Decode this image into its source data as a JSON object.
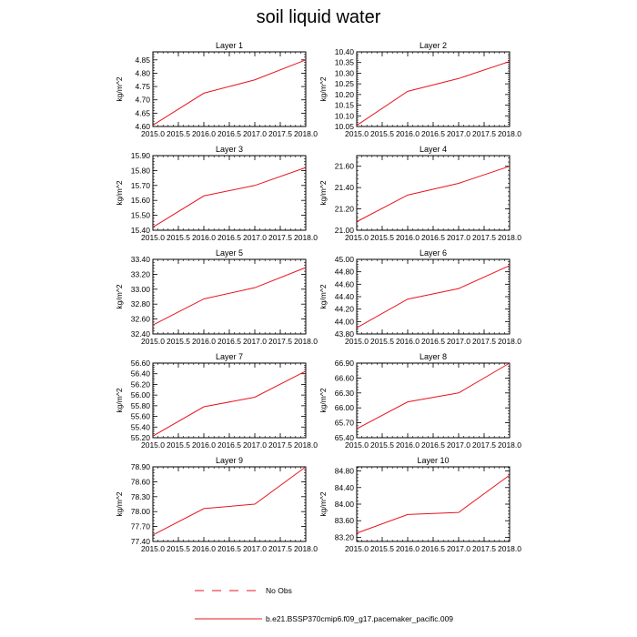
{
  "figure": {
    "title": "soil liquid water",
    "line_color": "#e8141e"
  },
  "legend": {
    "obs_label": "No Obs",
    "model_label": "b.e21.BSSP370cmip6.f09_g17.pacemaker_pacific.009"
  },
  "chart_data": [
    {
      "type": "line",
      "title": "Layer 1",
      "ylabel": "kg/m^2",
      "x": [
        2015,
        2016,
        2017,
        2018
      ],
      "xlim": [
        2015,
        2018
      ],
      "xticks": [
        "2015.0",
        "2015.5",
        "2016.0",
        "2016.5",
        "2017.0",
        "2017.5",
        "2018.0"
      ],
      "ylim": [
        4.6,
        4.88
      ],
      "yticks": [
        "4.60",
        "4.65",
        "4.70",
        "4.75",
        "4.80",
        "4.85"
      ],
      "values": [
        4.605,
        4.725,
        4.775,
        4.85
      ]
    },
    {
      "type": "line",
      "title": "Layer 2",
      "ylabel": "kg/m^2",
      "x": [
        2015,
        2016,
        2017,
        2018
      ],
      "xlim": [
        2015,
        2018
      ],
      "xticks": [
        "2015.0",
        "2015.5",
        "2016.0",
        "2016.5",
        "2017.0",
        "2017.5",
        "2018.0"
      ],
      "ylim": [
        10.05,
        10.4
      ],
      "yticks": [
        "10.05",
        "10.10",
        "10.15",
        "10.20",
        "10.25",
        "10.30",
        "10.35",
        "10.40"
      ],
      "values": [
        10.055,
        10.215,
        10.275,
        10.355
      ]
    },
    {
      "type": "line",
      "title": "Layer 3",
      "ylabel": "kg/m^2",
      "x": [
        2015,
        2016,
        2017,
        2018
      ],
      "xlim": [
        2015,
        2018
      ],
      "xticks": [
        "2015.0",
        "2015.5",
        "2016.0",
        "2016.5",
        "2017.0",
        "2017.5",
        "2018.0"
      ],
      "ylim": [
        15.4,
        15.9
      ],
      "yticks": [
        "15.40",
        "15.50",
        "15.60",
        "15.70",
        "15.80",
        "15.90"
      ],
      "values": [
        15.42,
        15.63,
        15.7,
        15.82
      ]
    },
    {
      "type": "line",
      "title": "Layer 4",
      "ylabel": "kg/m^2",
      "x": [
        2015,
        2016,
        2017,
        2018
      ],
      "xlim": [
        2015,
        2018
      ],
      "xticks": [
        "2015.0",
        "2015.5",
        "2016.0",
        "2016.5",
        "2017.0",
        "2017.5",
        "2018.0"
      ],
      "ylim": [
        21.0,
        21.7
      ],
      "yticks": [
        "21.00",
        "21.20",
        "21.40",
        "21.60"
      ],
      "values": [
        21.08,
        21.33,
        21.44,
        21.6
      ]
    },
    {
      "type": "line",
      "title": "Layer 5",
      "ylabel": "kg/m^2",
      "x": [
        2015,
        2016,
        2017,
        2018
      ],
      "xlim": [
        2015,
        2018
      ],
      "xticks": [
        "2015.0",
        "2015.5",
        "2016.0",
        "2016.5",
        "2017.0",
        "2017.5",
        "2018.0"
      ],
      "ylim": [
        32.4,
        33.4
      ],
      "yticks": [
        "32.40",
        "32.60",
        "32.80",
        "33.00",
        "33.20",
        "33.40"
      ],
      "values": [
        32.52,
        32.87,
        33.02,
        33.29
      ]
    },
    {
      "type": "line",
      "title": "Layer 6",
      "ylabel": "kg/m^2",
      "x": [
        2015,
        2016,
        2017,
        2018
      ],
      "xlim": [
        2015,
        2018
      ],
      "xticks": [
        "2015.0",
        "2015.5",
        "2016.0",
        "2016.5",
        "2017.0",
        "2017.5",
        "2018.0"
      ],
      "ylim": [
        43.8,
        45.0
      ],
      "yticks": [
        "43.80",
        "44.00",
        "44.20",
        "44.40",
        "44.60",
        "44.80",
        "45.00"
      ],
      "values": [
        43.9,
        44.36,
        44.53,
        44.9
      ]
    },
    {
      "type": "line",
      "title": "Layer 7",
      "ylabel": "kg/m^2",
      "x": [
        2015,
        2016,
        2017,
        2018
      ],
      "xlim": [
        2015,
        2018
      ],
      "xticks": [
        "2015.0",
        "2015.5",
        "2016.0",
        "2016.5",
        "2017.0",
        "2017.5",
        "2018.0"
      ],
      "ylim": [
        55.2,
        56.6
      ],
      "yticks": [
        "55.20",
        "55.40",
        "55.60",
        "55.80",
        "56.00",
        "56.20",
        "56.40",
        "56.60"
      ],
      "values": [
        55.23,
        55.78,
        55.96,
        56.45
      ]
    },
    {
      "type": "line",
      "title": "Layer 8",
      "ylabel": "kg/m^2",
      "x": [
        2015,
        2016,
        2017,
        2018
      ],
      "xlim": [
        2015,
        2018
      ],
      "xticks": [
        "2015.0",
        "2015.5",
        "2016.0",
        "2016.5",
        "2017.0",
        "2017.5",
        "2018.0"
      ],
      "ylim": [
        65.4,
        66.9
      ],
      "yticks": [
        "65.40",
        "65.70",
        "66.00",
        "66.30",
        "66.60",
        "66.90"
      ],
      "values": [
        65.58,
        66.12,
        66.3,
        66.9
      ]
    },
    {
      "type": "line",
      "title": "Layer 9",
      "ylabel": "kg/m^2",
      "x": [
        2015,
        2016,
        2017,
        2018
      ],
      "xlim": [
        2015,
        2018
      ],
      "xticks": [
        "2015.0",
        "2015.5",
        "2016.0",
        "2016.5",
        "2017.0",
        "2017.5",
        "2018.0"
      ],
      "ylim": [
        77.4,
        78.9
      ],
      "yticks": [
        "77.40",
        "77.70",
        "78.00",
        "78.30",
        "78.60",
        "78.90"
      ],
      "values": [
        77.53,
        78.06,
        78.15,
        78.9
      ]
    },
    {
      "type": "line",
      "title": "Layer 10",
      "ylabel": "kg/m^2",
      "x": [
        2015,
        2016,
        2017,
        2018
      ],
      "xlim": [
        2015,
        2018
      ],
      "xticks": [
        "2015.0",
        "2015.5",
        "2016.0",
        "2016.5",
        "2017.0",
        "2017.5",
        "2018.0"
      ],
      "ylim": [
        83.1,
        84.9
      ],
      "yticks": [
        "83.20",
        "83.60",
        "84.00",
        "84.40",
        "84.80"
      ],
      "values": [
        83.3,
        83.75,
        83.8,
        84.7
      ]
    }
  ]
}
